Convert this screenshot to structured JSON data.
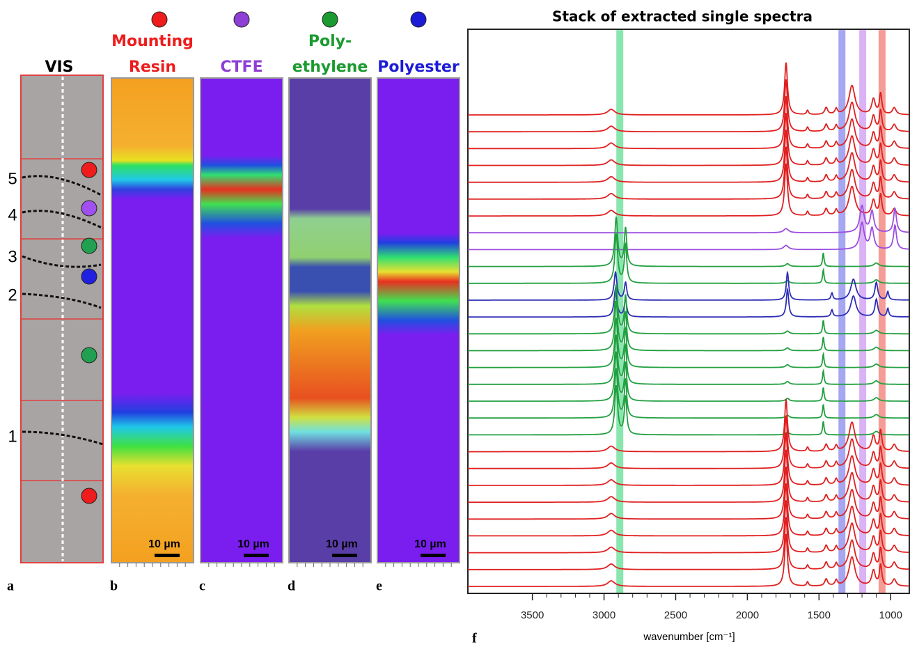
{
  "vis_panel": {
    "title": "VIS",
    "letter": "a",
    "depth_labels": [
      "5",
      "4",
      "3",
      "2",
      "1"
    ]
  },
  "map_panels": [
    {
      "letter": "b",
      "title_lines": [
        "Mounting",
        "Resin"
      ],
      "color": "#ee1c1c",
      "scale_bar": "10 µm"
    },
    {
      "letter": "c",
      "title_lines": [
        "CTFE"
      ],
      "color": "#8e3fd6",
      "scale_bar": "10 µm"
    },
    {
      "letter": "d",
      "title_lines": [
        "Poly-",
        "ethylene"
      ],
      "color": "#1a9a2f",
      "scale_bar": "10 µm"
    },
    {
      "letter": "e",
      "title_lines": [
        "Polyester"
      ],
      "color": "#1c1cd6",
      "scale_bar": "10 µm"
    }
  ],
  "spectra": {
    "title": "Stack of extracted single spectra",
    "letter": "f",
    "xlabel": "wavenumber [cm⁻¹]",
    "xlim": [
      3950,
      870
    ],
    "xticks": [
      3500,
      3000,
      2500,
      2000,
      1500,
      1000
    ],
    "bands": [
      {
        "position": 2890,
        "color": "#3cd67a"
      },
      {
        "position": 1340,
        "color": "#6a6ae8"
      },
      {
        "position": 1195,
        "color": "#c27ef0"
      },
      {
        "position": 1060,
        "color": "#ee5a50"
      }
    ],
    "profiles": [
      {
        "color": "#e02020",
        "peaks": [
          [
            1730,
            75,
            12
          ],
          [
            1270,
            42,
            25
          ],
          [
            1120,
            22,
            15
          ],
          [
            1070,
            30,
            10
          ],
          [
            2950,
            8,
            30
          ],
          [
            1450,
            10,
            12
          ],
          [
            1380,
            8,
            10
          ],
          [
            1580,
            6,
            8
          ],
          [
            975,
            10,
            15
          ]
        ]
      },
      {
        "color": "#9b4de0",
        "peaks": [
          [
            1200,
            38,
            18
          ],
          [
            1130,
            30,
            15
          ],
          [
            970,
            35,
            12
          ],
          [
            1730,
            6,
            20
          ]
        ]
      },
      {
        "color": "#22a040",
        "peaks": [
          [
            2915,
            70,
            12
          ],
          [
            2850,
            55,
            10
          ],
          [
            1470,
            20,
            6
          ],
          [
            1720,
            4,
            15
          ],
          [
            1100,
            5,
            20
          ]
        ]
      },
      {
        "color": "#2d2db8",
        "peaks": [
          [
            1720,
            40,
            10
          ],
          [
            1260,
            30,
            22
          ],
          [
            1100,
            25,
            12
          ],
          [
            2920,
            40,
            12
          ],
          [
            2850,
            25,
            10
          ],
          [
            1410,
            10,
            8
          ],
          [
            1020,
            12,
            8
          ]
        ]
      }
    ],
    "traces": [
      0,
      0,
      0,
      0,
      0,
      0,
      0,
      1,
      1,
      2,
      2,
      3,
      3,
      2,
      2,
      2,
      2,
      2,
      2,
      2,
      0,
      0,
      0,
      0,
      0,
      0,
      0,
      0,
      0
    ]
  }
}
